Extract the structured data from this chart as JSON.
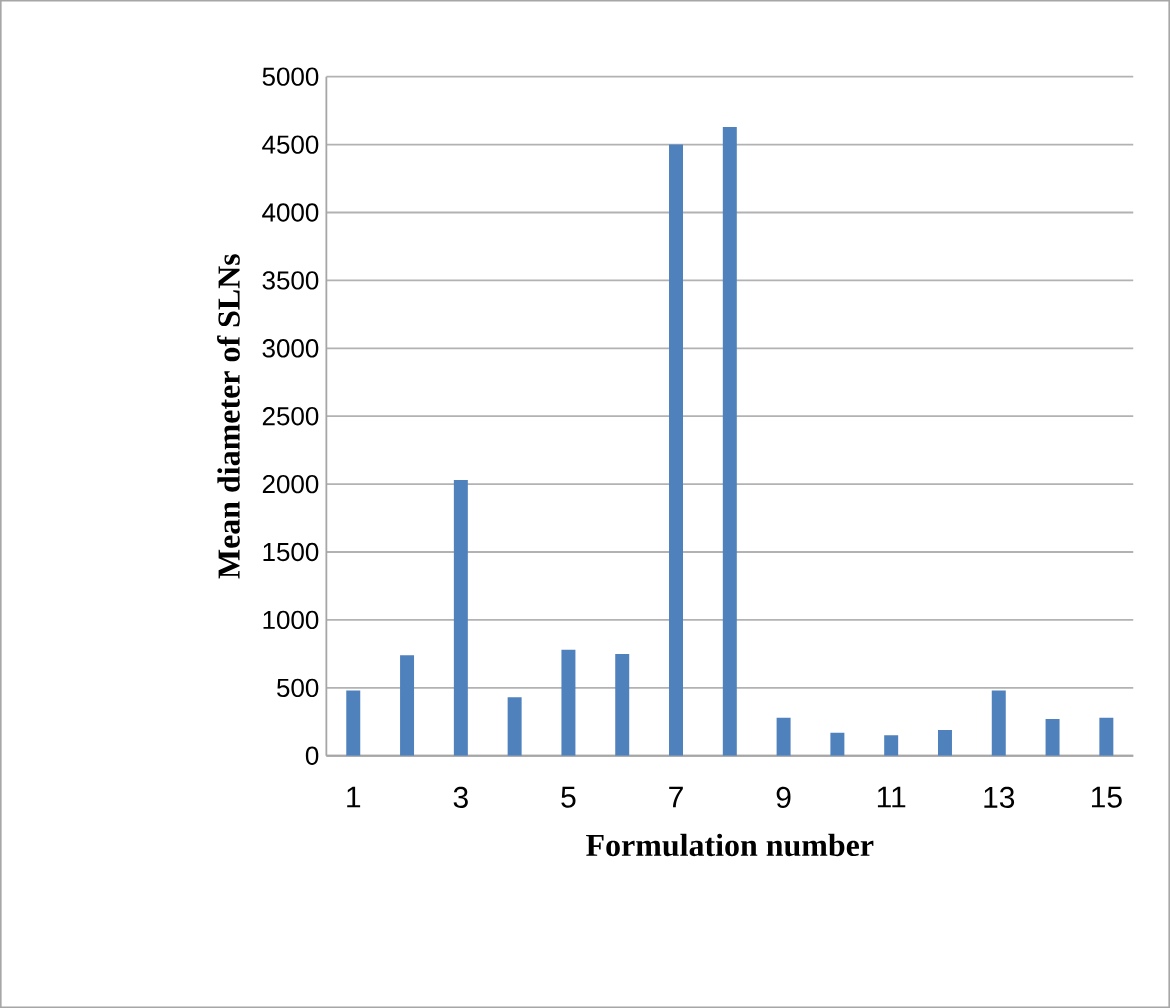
{
  "chart_data": {
    "type": "bar",
    "xlabel": "Formulation number",
    "ylabel": "Mean diameter of SLNs",
    "categories": [
      "1",
      null,
      "3",
      null,
      "5",
      null,
      "7",
      null,
      "9",
      null,
      "11",
      null,
      "13",
      null,
      "15"
    ],
    "values": [
      480,
      740,
      2030,
      430,
      780,
      750,
      4500,
      4630,
      280,
      170,
      150,
      190,
      480,
      270,
      280
    ],
    "color": "#4f81bd",
    "ylim": [
      0,
      5000
    ],
    "yticks": [
      0,
      500,
      1000,
      1500,
      2000,
      2500,
      3000,
      3500,
      4000,
      4500,
      5000
    ],
    "grid": "y"
  }
}
